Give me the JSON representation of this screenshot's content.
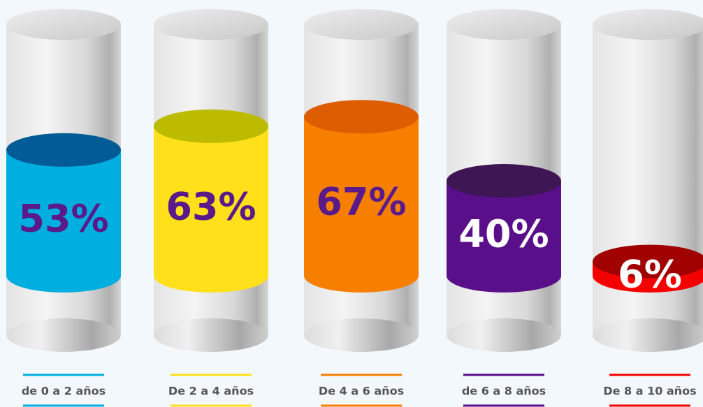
{
  "chart_data": {
    "type": "cylinder",
    "categories": [
      "de 0 a 2 años",
      "De 2 a 4 años",
      "De 4 a 6 años",
      "de 6 a 8 años",
      "De 8 a 10 años"
    ],
    "values": [
      53,
      63,
      67,
      40,
      6
    ],
    "value_labels": [
      "53%",
      "63%",
      "67%",
      "40%",
      "6%"
    ],
    "ylim": [
      0,
      100
    ],
    "colors": [
      "#00aee0",
      "#ffe01b",
      "#f77f00",
      "#5a0f8a",
      "#f40000"
    ],
    "top_colors": [
      "#005b96",
      "#bdbb00",
      "#dd5d00",
      "#3e1653",
      "#a10000"
    ],
    "label_colors": [
      "#5a1a8a",
      "#5a1a8a",
      "#5a1a8a",
      "#ffffff",
      "#ffffff"
    ]
  }
}
